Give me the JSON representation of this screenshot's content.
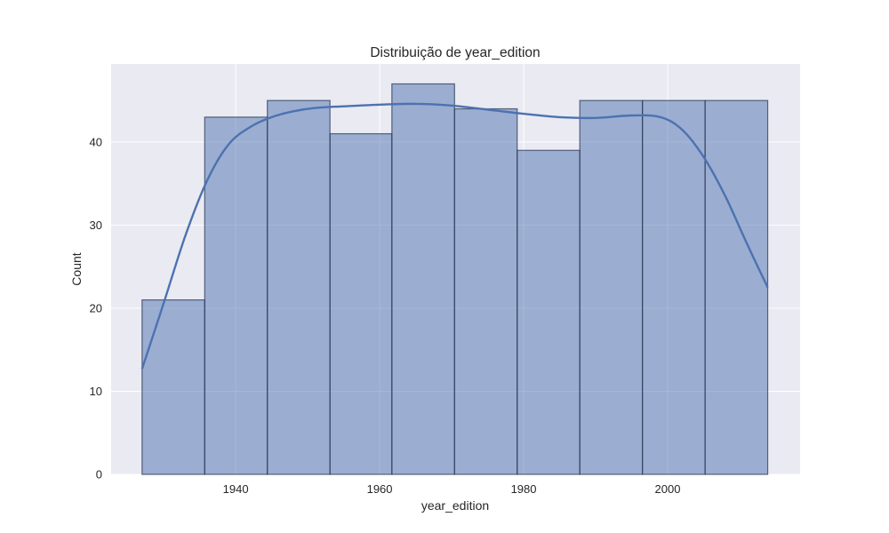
{
  "chart_data": {
    "type": "bar",
    "title": "Distribuição de year_edition",
    "xlabel": "year_edition",
    "ylabel": "Count",
    "xlim": [
      1922.7,
      2018.4
    ],
    "ylim": [
      0,
      49.4
    ],
    "x_ticks": [
      1940,
      1960,
      1980,
      2000
    ],
    "y_ticks": [
      0,
      10,
      20,
      30,
      40
    ],
    "bin_edges": [
      1927.0,
      1935.7,
      1944.4,
      1953.1,
      1961.7,
      1970.4,
      1979.1,
      1987.8,
      1996.5,
      2005.2,
      2013.9
    ],
    "values": [
      21,
      43,
      45,
      41,
      47,
      44,
      39,
      45,
      45,
      45
    ],
    "kde": {
      "x": [
        1927.0,
        1930.0,
        1933.0,
        1936.0,
        1939.0,
        1942.0,
        1945.0,
        1948.0,
        1951.0,
        1955.0,
        1960.0,
        1965.0,
        1970.0,
        1975.0,
        1980.0,
        1985.0,
        1990.0,
        1995.0,
        1999.0,
        2002.0,
        2005.0,
        2008.0,
        2011.0,
        2013.9
      ],
      "y": [
        12.7,
        20.6,
        28.7,
        35.3,
        39.7,
        41.8,
        43.0,
        43.7,
        44.1,
        44.3,
        44.5,
        44.6,
        44.4,
        43.9,
        43.4,
        43.0,
        42.9,
        43.2,
        43.0,
        41.5,
        38.2,
        33.5,
        27.8,
        22.5
      ]
    },
    "grid": true,
    "legend": "none",
    "colors": {
      "bar_fill": "#4c72b0",
      "bar_fill_opacity": 0.5,
      "bar_edge": "#2b3a55",
      "kde_line": "#4c72b0",
      "plot_background": "#eaeaf2",
      "grid": "#ffffff",
      "text": "#262626"
    }
  }
}
